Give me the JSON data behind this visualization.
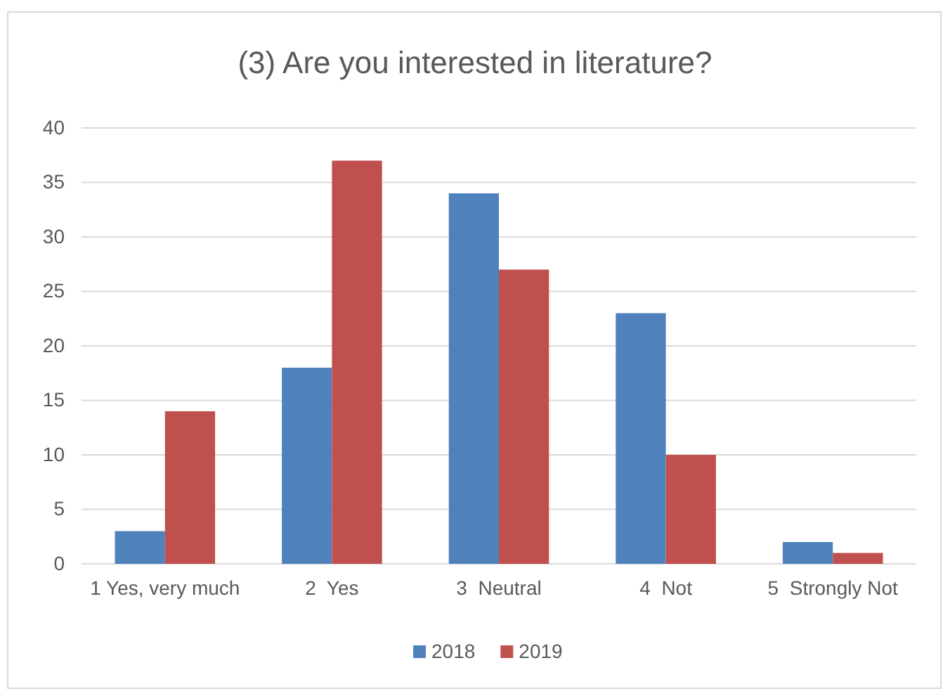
{
  "chart_data": {
    "type": "bar",
    "title": "(3) Are you interested in literature?",
    "categories": [
      "1 Yes, very much",
      "2  Yes",
      "3  Neutral",
      "4  Not",
      "5  Strongly Not"
    ],
    "series": [
      {
        "name": "2018",
        "color": "#4f81bd",
        "values": [
          3,
          18,
          34,
          23,
          2
        ]
      },
      {
        "name": "2019",
        "color": "#c0504d",
        "values": [
          14,
          37,
          27,
          10,
          1
        ]
      }
    ],
    "ylim": [
      0,
      40
    ],
    "yticks": [
      0,
      5,
      10,
      15,
      20,
      25,
      30,
      35,
      40
    ],
    "grid": "y",
    "legend": "bottom"
  }
}
